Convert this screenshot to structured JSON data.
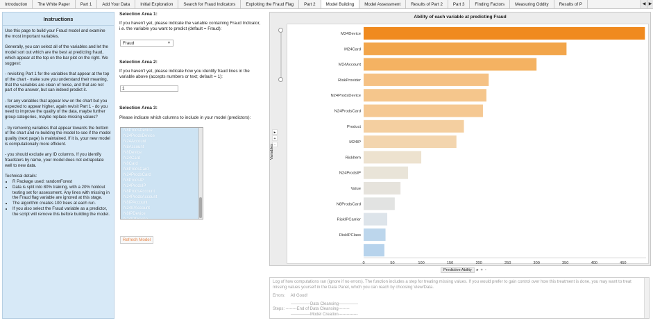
{
  "tabs": [
    {
      "label": "Introduction",
      "active": false
    },
    {
      "label": "The White Paper",
      "active": false
    },
    {
      "label": "Part 1",
      "active": false
    },
    {
      "label": "Add Your Data",
      "active": false
    },
    {
      "label": "Initial Exploration",
      "active": false
    },
    {
      "label": "Search for Fraud Indicators",
      "active": false
    },
    {
      "label": "Exploiting the Fraud Flag",
      "active": false
    },
    {
      "label": "Part 2",
      "active": false
    },
    {
      "label": "Model Building",
      "active": true
    },
    {
      "label": "Model Assessment",
      "active": false
    },
    {
      "label": "Results of Part 2",
      "active": false
    },
    {
      "label": "Part 3",
      "active": false
    },
    {
      "label": "Finding Factors",
      "active": false
    },
    {
      "label": "Measuring Oddity",
      "active": false
    },
    {
      "label": "Results of P",
      "active": false
    }
  ],
  "tab_nav": {
    "prev": "◀",
    "next": "▶"
  },
  "instructions": {
    "title": "Instructions",
    "paragraphs": [
      "Use this page to build your Fraud model and examine the most important variables.",
      "Generally, you can select all of the variables and let the model sort out which are the best at predicting fraud, which appear at the top on the bar plot on the right. We suggest:",
      "- revisiting Part 1 for the variables that appear at the top of the chart - make sure you understand their meaning, that the variables are clean of noise, and that are not part of the answer, but can indeed predict it.",
      "- for any variables that appear low on the chart but you expected to appear higher, again revisit Part 1 - do you need to improve the quality of the data, maybe further group categories, maybe replace missing values?",
      "- try removing variables that appear towards the bottom of the chart and re-building the model to see if the model quality (next page) is maintained. If it is, your new model is computationally more efficient.",
      "- you should exclude any ID columns. If you identify fraudsters by name, your model does not extrapolate well to new data."
    ],
    "tech_title": "Technical details:",
    "tech_items": [
      "R Package used: randomForest",
      "Data is split into 80% training, with a 20% holdout testing set for assessment. Any lines with missing in the Fraud flag variable are ignored at this stage.",
      "The algorithm creates 100 trees at each run.",
      "If you also select the Fraud variable as a predictor, the script will remove this before building the model."
    ]
  },
  "area1": {
    "title": "Selection Area 1:",
    "text": "If you haven't yet, please indicate the variable containing Fraud Indicator, i.e. the variable you want to predict (default = Fraud):",
    "selected": "Fraud"
  },
  "area2": {
    "title": "Selection Area 2:",
    "text": "If you haven't yet, please indicate how you identify fraud lines in the variable above (accepts numbers or text; default = 1):",
    "value": "1"
  },
  "area3": {
    "title": "Selection Area 3:",
    "text": "Please indicate which columns to include in your model (predictors):",
    "items": [
      "N8ProdsDevice",
      "N24ProdsDevice",
      "N24Account",
      "N8Account",
      "N8Device",
      "N24Card",
      "N8Card",
      "N8ProdsCard",
      "N24ProdsCard",
      "N8ProdsIP",
      "N24ProdsIP",
      "N8ProdsAccount",
      "N24ProdsAccount",
      "N8IPAccount",
      "N24IPAccount",
      "N8IPDevice",
      "N24IPDevice",
      "Fraud"
    ],
    "refresh_label": "Refresh Model"
  },
  "chart_data": {
    "type": "bar",
    "orientation": "horizontal",
    "title": "Ability of each variable at predicting Fraud",
    "xlabel": "Predictive Ability",
    "ylabel": "Variables",
    "xlim": [
      0,
      490
    ],
    "xticks": [
      0,
      50,
      100,
      150,
      200,
      250,
      300,
      350,
      400,
      450
    ],
    "categories": [
      "M24Device",
      "M24Card",
      "M24Account",
      "RiskProvider",
      "N24ProdsDevice",
      "N24ProdsCard",
      "Product",
      "M24IP",
      "RiskItem",
      "N24ProdsIP",
      "Value",
      "N8ProdsCard",
      "RiskIPCarrier",
      "RiskIPClass",
      ""
    ],
    "values": [
      488,
      352,
      300,
      217,
      213,
      207,
      174,
      161,
      100,
      77,
      64,
      54,
      41,
      38,
      36
    ],
    "colors": [
      "#f08a1f",
      "#f2a54a",
      "#f4b262",
      "#f5c184",
      "#f5c68c",
      "#f5c892",
      "#f4cfa0",
      "#f3d5ae",
      "#ede2cf",
      "#e9e4d8",
      "#e6e3dc",
      "#e2e3e2",
      "#dde4ea",
      "#bcd6ec",
      "#b7d3ec"
    ],
    "grid": false
  },
  "chart_ui": {
    "side_buttons": [
      "▸",
      "+",
      "-"
    ],
    "x_buttons": [
      "▸",
      "+",
      "-"
    ]
  },
  "log": {
    "header": "Log of how computations ran (ignore if no errors). The function includes a step for treating missing values. If you would prefer to gain control over how this treatment is done, you may want to treat missing values yourself in the Data Panel, which you can reach by choosing View/Data.",
    "errors_label": "Errors:",
    "errors_value": "All Good!",
    "lines": [
      "--------------Data Cleansing--------------",
      "Steps:  --------End of Data Cleansing--------",
      "--------------Model Creation--------------"
    ]
  }
}
